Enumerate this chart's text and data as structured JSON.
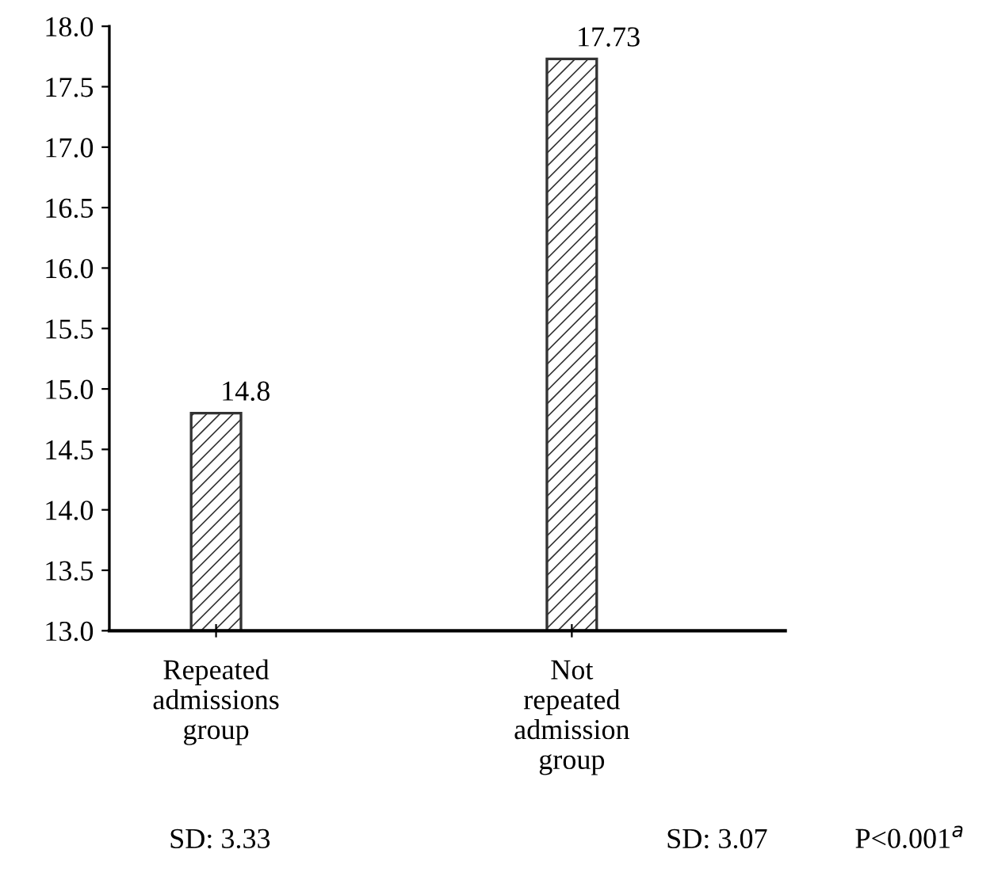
{
  "chart_data": {
    "type": "bar",
    "categories": [
      "Repeated\nadmissions\ngroup",
      "Not\nrepeated\nadmission\ngroup"
    ],
    "values": [
      14.8,
      17.73
    ],
    "value_labels": [
      "14.8",
      "17.73"
    ],
    "color": "#333333",
    "ylim": [
      13.0,
      18.0
    ],
    "yticks": [
      {
        "value": 13.0,
        "label": "13.0"
      },
      {
        "value": 13.5,
        "label": "13.5"
      },
      {
        "value": 14.0,
        "label": "14.0"
      },
      {
        "value": 14.5,
        "label": "14.5"
      },
      {
        "value": 15.0,
        "label": "15.0"
      },
      {
        "value": 15.5,
        "label": "15.5"
      },
      {
        "value": 16.0,
        "label": "16.0"
      },
      {
        "value": 16.5,
        "label": "16.5"
      },
      {
        "value": 17.0,
        "label": "17.0"
      },
      {
        "value": 17.5,
        "label": "17.5"
      },
      {
        "value": 18.0,
        "label": "18.0"
      }
    ],
    "grid": false,
    "legend": false,
    "annotations": [
      "SD: 3.33",
      "SD: 3.07",
      "P<0.001$^{a}$"
    ]
  }
}
